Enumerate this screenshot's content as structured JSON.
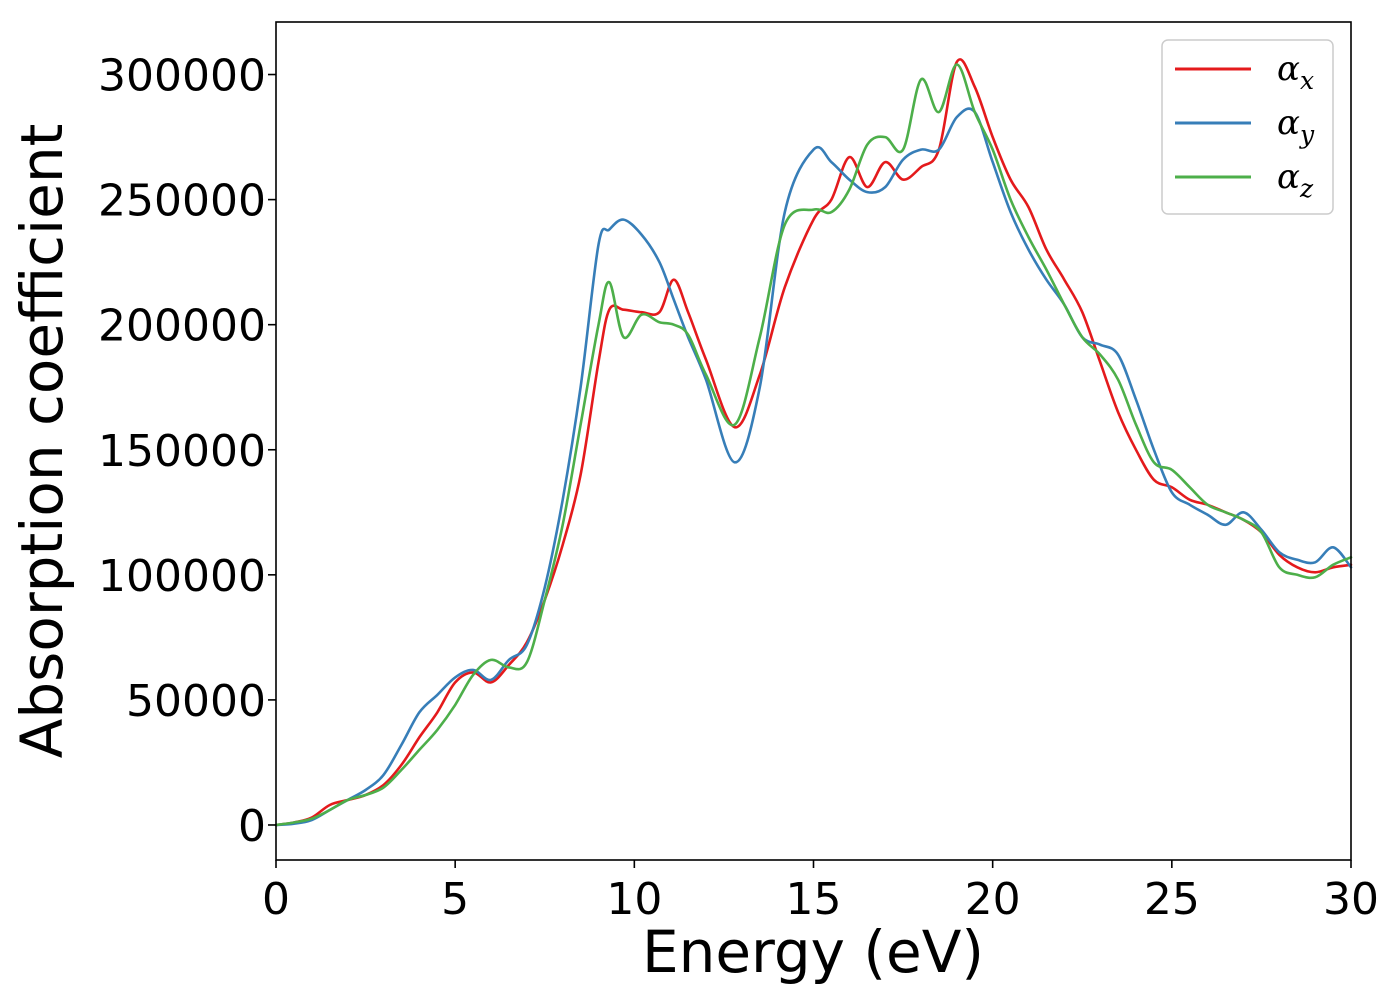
{
  "chart_data": {
    "type": "line",
    "xlabel": "Energy (eV)",
    "ylabel": "Absorption coefficient",
    "xlim": [
      0,
      30
    ],
    "ylim": [
      -14000,
      321000
    ],
    "xticks": [
      0,
      5,
      10,
      15,
      20,
      25,
      30
    ],
    "xtick_labels": [
      "0",
      "5",
      "10",
      "15",
      "20",
      "25",
      "30"
    ],
    "yticks": [
      0,
      50000,
      100000,
      150000,
      200000,
      250000,
      300000
    ],
    "ytick_labels": [
      "0",
      "50000",
      "100000",
      "150000",
      "200000",
      "250000",
      "300000"
    ],
    "grid": false,
    "legend_position": "top-right",
    "series": [
      {
        "name": "α",
        "subscript": "x",
        "color": "#e41a1c",
        "x": [
          0,
          0.5,
          1,
          1.5,
          2,
          2.5,
          3,
          3.5,
          4,
          4.5,
          5,
          5.5,
          6,
          6.5,
          7,
          7.5,
          8,
          8.5,
          9,
          9.3,
          9.7,
          10.2,
          10.7,
          11.1,
          11.5,
          12,
          12.8,
          13.5,
          14.2,
          15,
          15.5,
          16,
          16.5,
          17,
          17.5,
          18,
          18.5,
          19,
          19.5,
          20,
          20.5,
          21,
          21.5,
          22,
          22.5,
          23,
          23.5,
          24,
          24.5,
          25,
          25.5,
          26,
          26.5,
          27,
          27.5,
          28,
          28.5,
          29,
          29.5,
          30
        ],
        "values": [
          0,
          1000,
          3000,
          8000,
          10000,
          12000,
          16000,
          24000,
          35000,
          45000,
          57000,
          61000,
          57000,
          64000,
          73000,
          90000,
          112000,
          140000,
          185000,
          206000,
          206000,
          205000,
          205000,
          218000,
          205000,
          186000,
          159000,
          180000,
          215000,
          242000,
          250000,
          267000,
          255000,
          265000,
          258000,
          263000,
          270000,
          305000,
          295000,
          275000,
          258000,
          247000,
          230000,
          218000,
          205000,
          185000,
          165000,
          150000,
          138000,
          135000,
          130000,
          128000,
          125000,
          122000,
          117000,
          108000,
          103000,
          101000,
          103000,
          104000
        ]
      },
      {
        "name": "α",
        "subscript": "y",
        "color": "#377eb8",
        "x": [
          0,
          0.5,
          1,
          1.5,
          2,
          2.5,
          3,
          3.5,
          4,
          4.5,
          5,
          5.5,
          6,
          6.5,
          7,
          7.5,
          8,
          8.5,
          9,
          9.3,
          9.7,
          10.2,
          10.7,
          11.1,
          11.5,
          12,
          12.8,
          13.5,
          14.2,
          15,
          15.5,
          16,
          16.5,
          17,
          17.5,
          18,
          18.5,
          19,
          19.5,
          20,
          20.5,
          21,
          21.5,
          22,
          22.5,
          23,
          23.5,
          24,
          24.5,
          25,
          25.5,
          26,
          26.5,
          27,
          27.5,
          28,
          28.5,
          29,
          29.5,
          30
        ],
        "values": [
          0,
          500,
          2000,
          6000,
          10000,
          14000,
          20000,
          32000,
          45000,
          52000,
          59000,
          62000,
          58000,
          66000,
          72000,
          95000,
          130000,
          175000,
          232000,
          238000,
          242000,
          236000,
          225000,
          210000,
          195000,
          178000,
          145000,
          175000,
          245000,
          270000,
          265000,
          258000,
          253000,
          255000,
          266000,
          270000,
          270000,
          283000,
          285000,
          265000,
          245000,
          230000,
          218000,
          208000,
          195000,
          192000,
          188000,
          170000,
          150000,
          133000,
          128000,
          124000,
          120000,
          125000,
          118000,
          109000,
          106000,
          105000,
          111000,
          103000
        ]
      },
      {
        "name": "α",
        "subscript": "z",
        "color": "#4daf4a",
        "x": [
          0,
          0.5,
          1,
          1.5,
          2,
          2.5,
          3,
          3.5,
          4,
          4.5,
          5,
          5.5,
          6,
          6.5,
          7,
          7.5,
          8,
          8.5,
          9,
          9.3,
          9.7,
          10.2,
          10.7,
          11.1,
          11.5,
          12,
          12.8,
          13.5,
          14.2,
          15,
          15.5,
          16,
          16.5,
          17,
          17.5,
          18,
          18.5,
          19,
          19.5,
          20,
          20.5,
          21,
          21.5,
          22,
          22.5,
          23,
          23.5,
          24,
          24.5,
          25,
          25.5,
          26,
          26.5,
          27,
          27.5,
          28,
          28.5,
          29,
          29.5,
          30
        ],
        "values": [
          0,
          1000,
          2500,
          6000,
          10000,
          12000,
          15000,
          22000,
          30000,
          38000,
          48000,
          60000,
          66000,
          63000,
          65000,
          90000,
          120000,
          160000,
          200000,
          217000,
          195000,
          204000,
          201000,
          200000,
          196000,
          180000,
          160000,
          195000,
          240000,
          246000,
          245000,
          254000,
          272000,
          275000,
          270000,
          298000,
          285000,
          304000,
          285000,
          270000,
          250000,
          235000,
          222000,
          208000,
          195000,
          188000,
          178000,
          160000,
          145000,
          142000,
          135000,
          128000,
          125000,
          122000,
          117000,
          103000,
          100000,
          99000,
          104000,
          107000
        ]
      }
    ]
  }
}
